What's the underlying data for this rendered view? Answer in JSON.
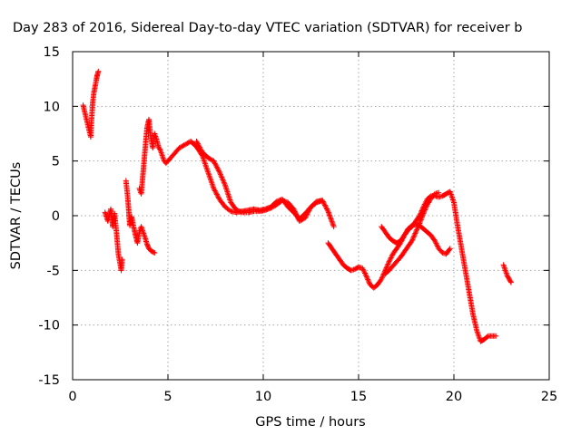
{
  "chart_data": {
    "type": "scatter",
    "title": "Day 283 of 2016, Sidereal Day-to-day VTEC variation (SDTVAR) for receiver b",
    "xlabel": "GPS time / hours",
    "ylabel": "SDTVAR / TECUs",
    "xlim": [
      0,
      25
    ],
    "ylim": [
      -15,
      15
    ],
    "x_ticks": [
      0,
      5,
      10,
      15,
      20,
      25
    ],
    "y_ticks": [
      -15,
      -10,
      -5,
      0,
      5,
      10,
      15
    ],
    "grid": true,
    "marker": "plus",
    "color": "#ff0000",
    "series": [
      {
        "x": [
          0.55,
          0.95,
          1.0,
          1.05,
          1.12,
          1.2,
          1.25,
          1.3,
          1.35
        ],
        "y": [
          10.1,
          7.2,
          8.9,
          10.3,
          11.3,
          12.0,
          12.5,
          12.9,
          13.2
        ]
      },
      {
        "x": [
          1.7,
          1.85,
          2.0,
          2.1,
          2.2,
          2.3,
          2.4,
          2.5,
          2.55,
          2.6
        ],
        "y": [
          0.3,
          -0.5,
          0.6,
          -1.0,
          0.2,
          -1.5,
          -3.5,
          -4.5,
          -5.0,
          -4.0
        ]
      },
      {
        "x": [
          2.8,
          2.9,
          2.95,
          3.0,
          3.1,
          3.2,
          3.3,
          3.4,
          3.5,
          3.6,
          3.7,
          3.8,
          3.9,
          4.0,
          4.1,
          4.2,
          4.3
        ],
        "y": [
          3.2,
          1.5,
          0.3,
          -0.9,
          -0.1,
          -1.0,
          -1.8,
          -2.5,
          -1.5,
          -1.0,
          -1.5,
          -2.0,
          -2.6,
          -3.0,
          -3.2,
          -3.3,
          -3.4
        ]
      },
      {
        "x": [
          3.5,
          3.6,
          3.7,
          3.8,
          3.9,
          4.0,
          4.1,
          4.2,
          4.3,
          4.4,
          4.5,
          4.6,
          4.7,
          4.8,
          4.9,
          5.0,
          5.3,
          5.6,
          5.9,
          6.2,
          6.5,
          6.8,
          7.1,
          7.4,
          7.7,
          8.0,
          8.3,
          8.6,
          8.9,
          9.2,
          9.5,
          9.8,
          10.1,
          10.4,
          10.7,
          11.0,
          11.3,
          11.6,
          11.9,
          12.2,
          12.5,
          12.8,
          13.1,
          13.4,
          13.7
        ],
        "y": [
          2.5,
          2.0,
          4.0,
          6.0,
          8.0,
          8.8,
          7.2,
          6.2,
          7.5,
          7.0,
          6.3,
          6.0,
          5.5,
          5.0,
          4.8,
          5.0,
          5.6,
          6.2,
          6.5,
          6.8,
          6.3,
          5.5,
          4.0,
          2.5,
          1.5,
          0.8,
          0.4,
          0.3,
          0.4,
          0.5,
          0.6,
          0.5,
          0.6,
          0.8,
          1.3,
          1.5,
          0.8,
          0.3,
          -0.3,
          0.2,
          0.8,
          1.2,
          1.4,
          0.4,
          -1.0
        ]
      },
      {
        "x": [
          6.5,
          6.8,
          7.1,
          7.4,
          7.7,
          8.0,
          8.3,
          8.6,
          8.9,
          9.2,
          9.5,
          9.8,
          10.1,
          10.4,
          10.7,
          11.0,
          11.3,
          11.6,
          11.9,
          12.2,
          12.5,
          12.8,
          13.1
        ],
        "y": [
          6.8,
          5.8,
          5.3,
          5.0,
          4.0,
          2.8,
          1.2,
          0.5,
          0.3,
          0.3,
          0.4,
          0.4,
          0.5,
          0.7,
          1.0,
          1.4,
          1.2,
          0.6,
          -0.5,
          -0.2,
          0.8,
          1.3,
          1.4
        ]
      },
      {
        "x": [
          13.4,
          13.6,
          13.8,
          14.0,
          14.2,
          14.4,
          14.6,
          14.8,
          15.0,
          15.2,
          15.4,
          15.6,
          15.8,
          16.0,
          16.2,
          16.4,
          16.6,
          16.8,
          17.0,
          17.2,
          17.4,
          17.6,
          17.8,
          18.0,
          18.2,
          18.4,
          18.6,
          18.8,
          19.0,
          19.2,
          19.4,
          19.6,
          19.8,
          20.0,
          20.2,
          20.4,
          20.6,
          20.8,
          21.0,
          21.2,
          21.4,
          21.6,
          21.8,
          22.0,
          22.2
        ],
        "y": [
          -2.5,
          -3.0,
          -3.5,
          -4.0,
          -4.5,
          -4.8,
          -5.0,
          -4.9,
          -4.7,
          -4.8,
          -5.5,
          -6.3,
          -6.6,
          -6.3,
          -5.8,
          -5.0,
          -4.2,
          -3.5,
          -3.0,
          -2.5,
          -1.8,
          -1.3,
          -1.0,
          -0.5,
          0.0,
          0.8,
          1.5,
          1.8,
          1.8,
          1.7,
          1.8,
          2.0,
          2.2,
          1.2,
          -1.0,
          -3.0,
          -5.0,
          -7.0,
          -9.0,
          -10.5,
          -11.5,
          -11.3,
          -11.0,
          -11.0,
          -11.0
        ]
      },
      {
        "x": [
          16.2,
          16.4,
          16.6,
          16.8,
          17.0,
          17.2,
          17.4,
          17.6,
          17.8,
          18.0,
          18.2,
          18.4,
          18.6,
          18.8,
          19.0,
          19.2,
          19.4,
          19.6,
          19.8
        ],
        "y": [
          -1.0,
          -1.5,
          -2.0,
          -2.3,
          -2.5,
          -2.3,
          -1.8,
          -1.2,
          -0.9,
          -0.8,
          -0.9,
          -1.2,
          -1.5,
          -1.8,
          -2.3,
          -3.0,
          -3.4,
          -3.5,
          -3.0
        ]
      },
      {
        "x": [
          16.4,
          16.6,
          16.8,
          17.0,
          17.2,
          17.4,
          17.6,
          17.8,
          18.0,
          18.2,
          18.4,
          18.6,
          18.8,
          19.0,
          19.2
        ],
        "y": [
          -5.3,
          -5.0,
          -4.6,
          -4.2,
          -3.8,
          -3.3,
          -2.8,
          -2.3,
          -1.5,
          -0.7,
          0.2,
          1.0,
          1.6,
          2.0,
          2.1
        ]
      },
      {
        "x": [
          22.6,
          22.7,
          22.8,
          22.9,
          23.0
        ],
        "y": [
          -4.5,
          -5.0,
          -5.5,
          -5.8,
          -6.1
        ]
      }
    ]
  }
}
